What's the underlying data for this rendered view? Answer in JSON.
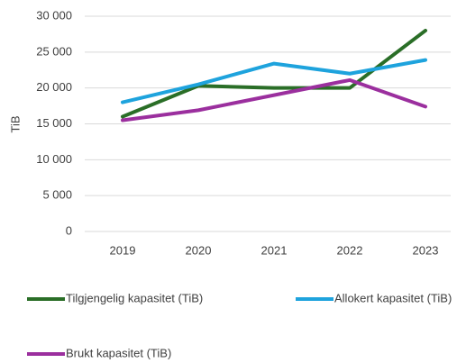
{
  "chart_data": {
    "type": "line",
    "y_label": "TiB",
    "categories": [
      "2019",
      "2020",
      "2021",
      "2022",
      "2023"
    ],
    "series": [
      {
        "name": "Tilgjengelig kapasitet (TiB)",
        "color": "#2a6e27",
        "values": [
          16000,
          20300,
          20000,
          20000,
          28000
        ]
      },
      {
        "name": "Allokert kapasitet (TiB)",
        "color": "#1ea3dd",
        "values": [
          18000,
          20500,
          23400,
          22000,
          23900
        ]
      },
      {
        "name": "Brukt kapasitet (TiB)",
        "color": "#9b2f9e",
        "values": [
          15500,
          16900,
          19000,
          21100,
          17400
        ]
      }
    ],
    "ylim": [
      0,
      30000
    ],
    "yticks": [
      0,
      {
        "value": 5000,
        "label": "5 000"
      },
      {
        "value": 10000,
        "label": "10 000"
      },
      {
        "value": 15000,
        "label": "15 000"
      },
      {
        "value": 20000,
        "label": "20 000"
      },
      {
        "value": 25000,
        "label": "25 000"
      },
      {
        "value": 30000,
        "label": "30 000"
      }
    ],
    "grid": true
  }
}
